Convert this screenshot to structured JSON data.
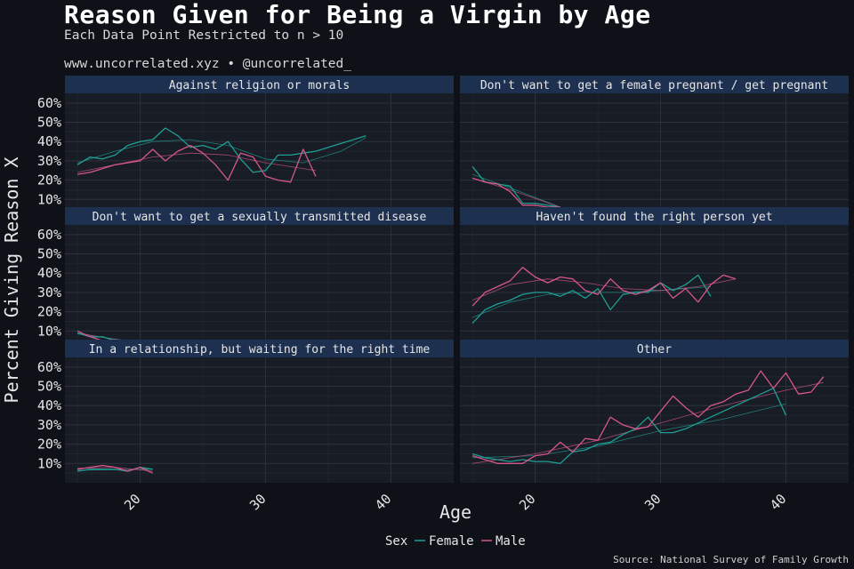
{
  "header": {
    "title": "Reason Given for Being a Virgin by Age",
    "subtitle": "Each Data Point Restricted to n > 10",
    "credit": "www.uncorrelated.xyz • @uncorrelated_",
    "source": "Source: National Survey of Family Growth"
  },
  "colors": {
    "background": "#0e1117",
    "panel": "#181c24",
    "strip": "#1e3050",
    "grid": "#2c313b",
    "female": "#1f9e95",
    "male": "#d5578b"
  },
  "chart_data": {
    "type": "line",
    "layout": "facet 3x2, free x? no — shared x and y axes",
    "xlabel": "Age",
    "ylabel": "Percent Giving Reason X",
    "xlim": [
      14,
      45
    ],
    "ylim": [
      0,
      0.65
    ],
    "xticks": [
      20,
      30,
      40
    ],
    "xtick_labels": [
      "20",
      "30",
      "40"
    ],
    "yticks": [
      0.1,
      0.2,
      0.3,
      0.4,
      0.5,
      0.6
    ],
    "ytick_labels": [
      "10%",
      "20%",
      "30%",
      "40%",
      "50%",
      "60%"
    ],
    "grid": true,
    "legend": {
      "title": "Sex",
      "position": "bottom",
      "entries": [
        {
          "label": "Female",
          "color": "#1f9e95"
        },
        {
          "label": "Male",
          "color": "#d5578b"
        }
      ]
    },
    "panels": [
      {
        "title": "Against religion or morals",
        "series": [
          {
            "name": "Female",
            "x": [
              15,
              16,
              17,
              18,
              19,
              20,
              21,
              22,
              23,
              24,
              25,
              26,
              27,
              28,
              29,
              30,
              31,
              32,
              33,
              34,
              35,
              36,
              37,
              38
            ],
            "y": [
              0.28,
              0.32,
              0.31,
              0.33,
              0.38,
              0.4,
              0.41,
              0.47,
              0.43,
              0.37,
              0.38,
              0.36,
              0.4,
              0.31,
              0.24,
              0.25,
              0.33,
              0.33,
              0.34,
              0.35,
              0.37,
              0.39,
              0.41,
              0.43
            ]
          },
          {
            "name": "Male",
            "x": [
              15,
              16,
              17,
              18,
              19,
              20,
              21,
              22,
              23,
              24,
              25,
              26,
              27,
              28,
              29,
              30,
              31,
              32,
              33,
              34
            ],
            "y": [
              0.23,
              0.24,
              0.26,
              0.28,
              0.29,
              0.3,
              0.36,
              0.3,
              0.35,
              0.38,
              0.34,
              0.28,
              0.2,
              0.34,
              0.32,
              0.22,
              0.2,
              0.19,
              0.36,
              0.22
            ]
          }
        ],
        "trends": [
          {
            "name": "Female",
            "x": [
              15,
              18,
              21,
              24,
              27,
              30,
              33,
              36,
              38
            ],
            "y": [
              0.29,
              0.35,
              0.4,
              0.41,
              0.38,
              0.31,
              0.29,
              0.35,
              0.42
            ]
          },
          {
            "name": "Male",
            "x": [
              15,
              18,
              21,
              24,
              27,
              30,
              33,
              34
            ],
            "y": [
              0.24,
              0.28,
              0.32,
              0.34,
              0.33,
              0.29,
              0.26,
              0.25
            ]
          }
        ]
      },
      {
        "title": "Don't want to get a female pregnant / get pregnant",
        "series": [
          {
            "name": "Female",
            "x": [
              15,
              16,
              17,
              18,
              19,
              20,
              21,
              22
            ],
            "y": [
              0.27,
              0.19,
              0.18,
              0.17,
              0.08,
              0.08,
              0.07,
              0.06
            ]
          },
          {
            "name": "Male",
            "x": [
              15,
              16,
              17,
              18,
              19,
              20,
              21,
              22
            ],
            "y": [
              0.21,
              0.19,
              0.18,
              0.14,
              0.07,
              0.07,
              0.06,
              0.06
            ]
          }
        ],
        "trends": [
          {
            "name": "Female",
            "x": [
              15,
              18,
              22
            ],
            "y": [
              0.23,
              0.16,
              0.06
            ]
          },
          {
            "name": "Male",
            "x": [
              15,
              18,
              22
            ],
            "y": [
              0.21,
              0.15,
              0.06
            ]
          }
        ]
      },
      {
        "title": "Don't want to get a sexually transmitted disease",
        "series": [
          {
            "name": "Female",
            "x": [
              15,
              16,
              17,
              18,
              19
            ],
            "y": [
              0.09,
              0.07,
              0.07,
              0.05,
              0.05
            ]
          },
          {
            "name": "Male",
            "x": [
              15,
              16,
              17,
              18,
              19
            ],
            "y": [
              0.1,
              0.07,
              0.05,
              0.04,
              0.05
            ]
          }
        ],
        "trends": [
          {
            "name": "Female",
            "x": [
              15,
              19
            ],
            "y": [
              0.085,
              0.05
            ]
          },
          {
            "name": "Male",
            "x": [
              15,
              19
            ],
            "y": [
              0.09,
              0.045
            ]
          }
        ]
      },
      {
        "title": "Haven't found the right person yet",
        "series": [
          {
            "name": "Female",
            "x": [
              15,
              16,
              17,
              18,
              19,
              20,
              21,
              22,
              23,
              24,
              25,
              26,
              27,
              28,
              29,
              30,
              31,
              32,
              33,
              34
            ],
            "y": [
              0.14,
              0.21,
              0.24,
              0.26,
              0.29,
              0.3,
              0.3,
              0.28,
              0.31,
              0.27,
              0.32,
              0.21,
              0.29,
              0.3,
              0.3,
              0.35,
              0.31,
              0.34,
              0.39,
              0.28
            ]
          },
          {
            "name": "Male",
            "x": [
              15,
              16,
              17,
              18,
              19,
              20,
              21,
              22,
              23,
              24,
              25,
              26,
              27,
              28,
              29,
              30,
              31,
              32,
              33,
              34,
              35,
              36
            ],
            "y": [
              0.23,
              0.3,
              0.33,
              0.36,
              0.43,
              0.38,
              0.35,
              0.38,
              0.37,
              0.31,
              0.29,
              0.37,
              0.31,
              0.29,
              0.31,
              0.35,
              0.27,
              0.32,
              0.25,
              0.34,
              0.39,
              0.37
            ]
          }
        ],
        "trends": [
          {
            "name": "Female",
            "x": [
              15,
              18,
              21,
              24,
              27,
              30,
              34
            ],
            "y": [
              0.17,
              0.25,
              0.29,
              0.3,
              0.3,
              0.31,
              0.33
            ]
          },
          {
            "name": "Male",
            "x": [
              15,
              18,
              21,
              24,
              27,
              30,
              33,
              36
            ],
            "y": [
              0.26,
              0.34,
              0.37,
              0.35,
              0.32,
              0.31,
              0.33,
              0.37
            ]
          }
        ]
      },
      {
        "title": "In a relationship, but waiting for the right time",
        "series": [
          {
            "name": "Female",
            "x": [
              15,
              16,
              17,
              18,
              19,
              20,
              21
            ],
            "y": [
              0.06,
              0.07,
              0.07,
              0.07,
              0.06,
              0.08,
              0.07
            ]
          },
          {
            "name": "Male",
            "x": [
              15,
              16,
              17,
              18,
              19,
              20,
              21
            ],
            "y": [
              0.07,
              0.08,
              0.09,
              0.08,
              0.06,
              0.08,
              0.05
            ]
          }
        ],
        "trends": [
          {
            "name": "Female",
            "x": [
              15,
              21
            ],
            "y": [
              0.065,
              0.07
            ]
          },
          {
            "name": "Male",
            "x": [
              15,
              18,
              21
            ],
            "y": [
              0.075,
              0.08,
              0.06
            ]
          }
        ]
      },
      {
        "title": "Other",
        "series": [
          {
            "name": "Female",
            "x": [
              15,
              16,
              17,
              18,
              19,
              20,
              21,
              22,
              23,
              24,
              25,
              26,
              27,
              28,
              29,
              30,
              31,
              32,
              33,
              34,
              35,
              36,
              37,
              38,
              39,
              40
            ],
            "y": [
              0.15,
              0.13,
              0.12,
              0.11,
              0.12,
              0.11,
              0.11,
              0.1,
              0.16,
              0.17,
              0.2,
              0.21,
              0.25,
              0.28,
              0.34,
              0.26,
              0.26,
              0.28,
              0.31,
              0.34,
              0.37,
              0.4,
              0.43,
              0.46,
              0.49,
              0.35
            ]
          },
          {
            "name": "Male",
            "x": [
              15,
              16,
              17,
              18,
              19,
              20,
              21,
              22,
              23,
              24,
              25,
              26,
              27,
              28,
              29,
              30,
              31,
              32,
              33,
              34,
              35,
              36,
              37,
              38,
              39,
              40,
              41,
              42,
              43
            ],
            "y": [
              0.14,
              0.12,
              0.1,
              0.1,
              0.1,
              0.14,
              0.15,
              0.21,
              0.16,
              0.23,
              0.22,
              0.34,
              0.3,
              0.28,
              0.29,
              0.37,
              0.45,
              0.39,
              0.34,
              0.4,
              0.42,
              0.46,
              0.48,
              0.58,
              0.49,
              0.57,
              0.46,
              0.47,
              0.55
            ]
          }
        ],
        "trends": [
          {
            "name": "Female",
            "x": [
              15,
              20,
              25,
              30,
              35,
              40
            ],
            "y": [
              0.13,
              0.14,
              0.19,
              0.27,
              0.33,
              0.41
            ]
          },
          {
            "name": "Male",
            "x": [
              15,
              20,
              25,
              30,
              35,
              40,
              43
            ],
            "y": [
              0.1,
              0.15,
              0.22,
              0.31,
              0.4,
              0.48,
              0.52
            ]
          }
        ]
      }
    ]
  }
}
